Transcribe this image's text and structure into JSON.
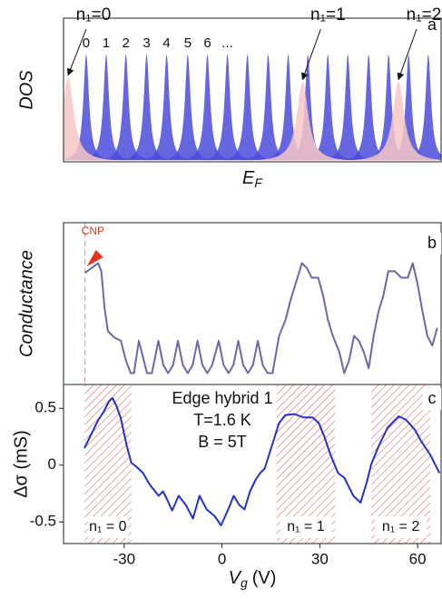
{
  "chart_data": [
    {
      "type": "dos",
      "panel": "a",
      "y_label": "DOS",
      "x_label": {
        "symbol": "E",
        "subscript": "F"
      },
      "xlim": [
        0,
        100
      ],
      "ylim": [
        0,
        1
      ],
      "color": "#4b4bdc",
      "peaks": {
        "x": [
          6,
          11.3,
          16.5,
          22,
          27.3,
          32.9,
          38.1,
          43.4,
          48.7,
          54.2,
          59.5,
          64.7,
          70,
          75.3,
          80.8,
          86.1,
          91.4,
          96.6
        ],
        "values": [
          0.75,
          0.75,
          0.75,
          0.75,
          0.75,
          0.75,
          0.75,
          0.75,
          0.75,
          0.75,
          0.75,
          0.75,
          0.75,
          0.75,
          0.75,
          0.75,
          0.75,
          0.75
        ]
      },
      "level_labels": [
        0,
        1,
        2,
        3,
        4,
        5,
        6,
        "..."
      ],
      "highlights": {
        "color": "#f7c6c6",
        "x": [
          1.2,
          63.3,
          88.7
        ],
        "values": [
          0.59,
          0.56,
          0.56
        ],
        "labels": [
          "n₁=0",
          "n₁=1",
          "n₁=2"
        ]
      }
    },
    {
      "type": "line",
      "panel": "b",
      "y_label": "Conductance",
      "color": "#6a6aa8",
      "xlim": [
        -48.6,
        67.2
      ],
      "ylim": [
        0,
        1
      ],
      "annotation": {
        "text": "CNP",
        "x": -42,
        "color": "#e8321e"
      },
      "x": [
        -42,
        -40,
        -38,
        -37,
        -36,
        -35,
        -33,
        -31,
        -29.5,
        -28,
        -27,
        -25.5,
        -24,
        -23,
        -21.5,
        -19.5,
        -18,
        -16.5,
        -15,
        -13.5,
        -12,
        -10.5,
        -9,
        -7.5,
        -6,
        -4.5,
        -3,
        -1,
        0.5,
        2,
        3.5,
        5,
        6.5,
        8,
        9.5,
        11,
        12.5,
        14,
        15.5,
        17.5,
        19.5,
        21,
        23,
        24.5,
        26,
        27.5,
        29.5,
        31,
        32.5,
        34,
        36,
        37.5,
        39,
        40.5,
        42,
        43.5,
        45,
        46.5,
        48,
        49.5,
        51,
        53,
        55,
        57,
        58.5,
        60,
        61.5,
        63,
        64.5,
        66
      ],
      "values": [
        0.69,
        0.72,
        0.75,
        0.7,
        0.47,
        0.33,
        0.29,
        0.27,
        0.15,
        0.07,
        0.07,
        0.27,
        0.15,
        0.07,
        0.07,
        0.27,
        0.12,
        0.07,
        0.12,
        0.27,
        0.12,
        0.07,
        0.12,
        0.27,
        0.12,
        0.07,
        0.12,
        0.27,
        0.12,
        0.07,
        0.12,
        0.27,
        0.12,
        0.07,
        0.12,
        0.27,
        0.12,
        0.07,
        0.07,
        0.3,
        0.4,
        0.52,
        0.65,
        0.75,
        0.72,
        0.66,
        0.66,
        0.55,
        0.4,
        0.3,
        0.2,
        0.07,
        0.15,
        0.3,
        0.27,
        0.2,
        0.1,
        0.3,
        0.45,
        0.55,
        0.7,
        0.7,
        0.66,
        0.66,
        0.75,
        0.62,
        0.45,
        0.3,
        0.24,
        0.35
      ]
    },
    {
      "type": "line",
      "panel": "c",
      "color": "#2233cc",
      "y_label": "Δσ (mS)",
      "x_label": {
        "symbol": "V",
        "subscript": "g",
        "unit": "(V)"
      },
      "xlim": [
        -48.6,
        67.2
      ],
      "ylim": [
        -0.69,
        0.71
      ],
      "xticks": [
        -30,
        0,
        30,
        60
      ],
      "yticks": [
        0.5,
        0,
        -0.5
      ],
      "annotations": [
        "Edge hybrid 1",
        "T=1.6 K",
        "B = 5T"
      ],
      "regions": [
        {
          "start": -42.2,
          "end": -27.8,
          "label": "n₁ = 0"
        },
        {
          "start": 16.7,
          "end": 34.7,
          "label": "n₁ = 1"
        },
        {
          "start": 45.8,
          "end": 63.9,
          "label": "n₁ = 2"
        }
      ],
      "x": [
        -42.2,
        -40.3,
        -38.1,
        -36.1,
        -34.7,
        -33.6,
        -32.5,
        -31.1,
        -29.2,
        -27.8,
        -26.4,
        -24.2,
        -22.2,
        -19.4,
        -18.1,
        -16.7,
        -15.3,
        -13.3,
        -11.1,
        -8.9,
        -6.9,
        -4.7,
        -2.2,
        -0.3,
        1.9,
        3.6,
        5.3,
        6.9,
        8.6,
        10.3,
        11.7,
        13.1,
        15.3,
        17.5,
        19.4,
        22.2,
        25,
        27.8,
        29.7,
        31.4,
        33.3,
        35.6,
        37.5,
        40.3,
        42.5,
        44.4,
        45.8,
        48.1,
        50.8,
        54.2,
        56.4,
        59.2,
        61.1,
        63.9,
        66.7
      ],
      "values": [
        0.15,
        0.26,
        0.39,
        0.48,
        0.56,
        0.59,
        0.53,
        0.42,
        0.17,
        0.02,
        -0.01,
        -0.07,
        -0.17,
        -0.27,
        -0.23,
        -0.31,
        -0.4,
        -0.27,
        -0.35,
        -0.47,
        -0.27,
        -0.39,
        -0.45,
        -0.53,
        -0.39,
        -0.27,
        -0.35,
        -0.39,
        -0.23,
        -0.13,
        -0.07,
        -0.03,
        0.17,
        0.37,
        0.44,
        0.45,
        0.42,
        0.42,
        0.37,
        0.25,
        0.09,
        -0.07,
        -0.11,
        -0.27,
        -0.33,
        -0.15,
        0.01,
        0.17,
        0.33,
        0.43,
        0.4,
        0.31,
        0.21,
        0.09,
        -0.07
      ]
    }
  ]
}
